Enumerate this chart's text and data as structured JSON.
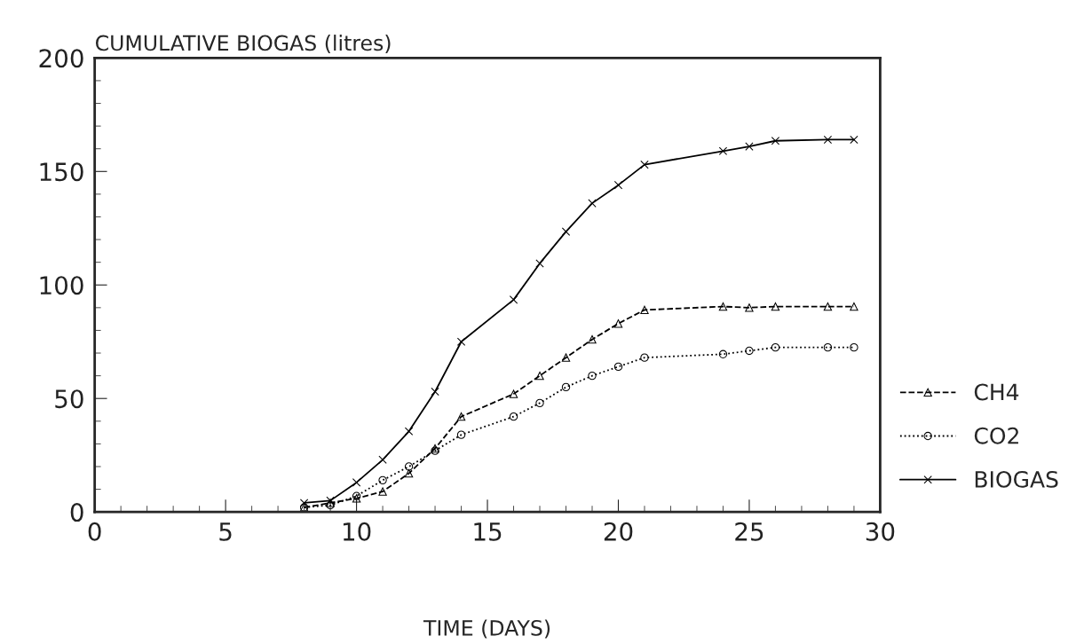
{
  "chart_data": {
    "type": "line",
    "title": "CUMULATIVE BIOGAS (litres)",
    "xlabel": "TIME (DAYS)",
    "series": [
      {
        "name": "CH4",
        "color": "#000000",
        "marker": "triangle",
        "line_style": "dashed",
        "x": [
          8,
          9,
          10,
          11,
          12,
          13,
          14,
          16,
          17,
          18,
          19,
          20,
          21,
          24,
          25,
          26,
          28,
          29
        ],
        "values": [
          2,
          4,
          6,
          9,
          17,
          28,
          42,
          52,
          60,
          68,
          76,
          83,
          89,
          90.5,
          90,
          90.5,
          90.5,
          90.5
        ]
      },
      {
        "name": "CO2",
        "color": "#000000",
        "marker": "circle",
        "line_style": "dotted",
        "x": [
          8,
          9,
          10,
          11,
          12,
          13,
          14,
          16,
          17,
          18,
          19,
          20,
          21,
          24,
          25,
          26,
          28,
          29
        ],
        "values": [
          2,
          3,
          7,
          14,
          20,
          27,
          34,
          42,
          48,
          55,
          60,
          64,
          68,
          69.5,
          71,
          72.5,
          72.5,
          72.5
        ]
      },
      {
        "name": "BIOGAS",
        "color": "#000000",
        "marker": "cross",
        "line_style": "solid",
        "x": [
          8,
          9,
          10,
          11,
          12,
          13,
          14,
          16,
          17,
          18,
          19,
          20,
          21,
          24,
          25,
          26,
          28,
          29
        ],
        "values": [
          4,
          5,
          13,
          23,
          35.5,
          53,
          75,
          93.5,
          109.5,
          123.5,
          136,
          144,
          153,
          159,
          161,
          163.5,
          164,
          164
        ]
      }
    ],
    "xlim": [
      0,
      30
    ],
    "ylim": [
      0,
      200
    ],
    "xticks": [
      0,
      5,
      10,
      15,
      20,
      25,
      30
    ],
    "yticks": [
      0,
      50,
      100,
      150,
      200
    ],
    "grid": false,
    "legend": "bottom right"
  }
}
